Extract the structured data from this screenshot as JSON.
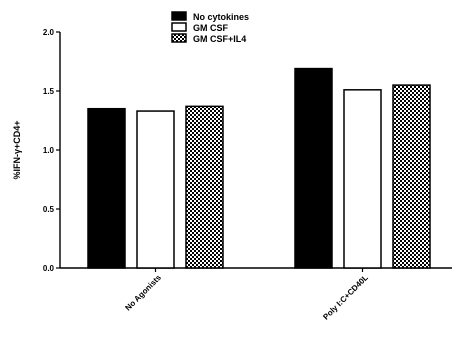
{
  "chart_data": {
    "type": "bar",
    "title": "",
    "xlabel": "",
    "ylabel": "%IFN-γ+CD4+",
    "ylim": [
      0,
      2.0
    ],
    "yticks": [
      "0.0",
      "0.5",
      "1.0",
      "1.5",
      "2.0"
    ],
    "categories": [
      "No Agonists",
      "Poly I:C+CD40L"
    ],
    "series": [
      {
        "name": "No cytokines",
        "values": [
          1.35,
          1.69
        ],
        "fill": "solid-black"
      },
      {
        "name": "GM CSF",
        "values": [
          1.33,
          1.51
        ],
        "fill": "white"
      },
      {
        "name": "GM CSF+IL4",
        "values": [
          1.37,
          1.55
        ],
        "fill": "checkered"
      }
    ],
    "legend_position": "top"
  }
}
